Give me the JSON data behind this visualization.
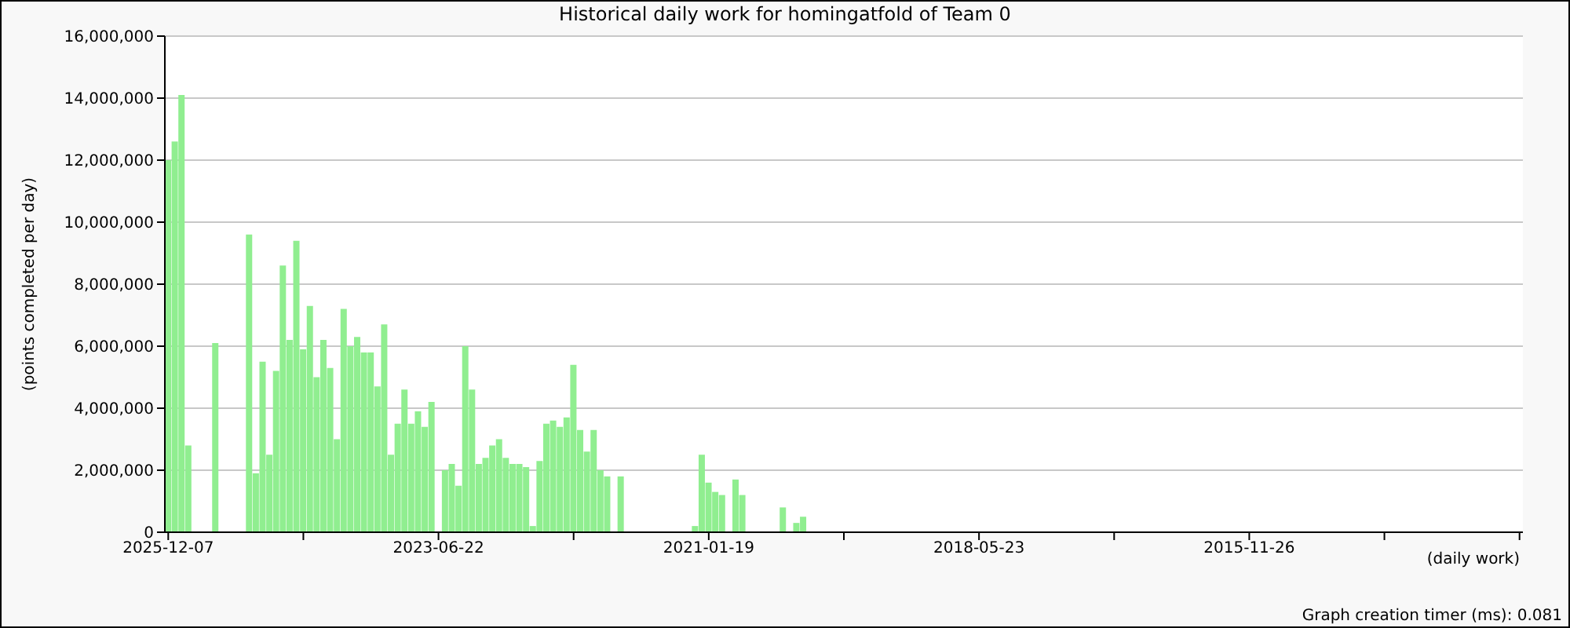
{
  "chart_data": {
    "type": "bar",
    "title": "Historical daily work for homingatfold of Team 0",
    "xlabel": "(daily work)",
    "ylabel": "(points completed per day)",
    "annotations": [
      "Graph creation timer (ms): 0.081"
    ],
    "categories": [
      "2025-12-07",
      null,
      null,
      null,
      null,
      null,
      null,
      null,
      null,
      null,
      null,
      null,
      null,
      null,
      null,
      null,
      null,
      null,
      null,
      null,
      null,
      null,
      null,
      null,
      null,
      null,
      null,
      null,
      null,
      null,
      null,
      null,
      null,
      null,
      null,
      null,
      null,
      null,
      null,
      null,
      "2023-06-22",
      null,
      null,
      null,
      null,
      null,
      null,
      null,
      null,
      null,
      null,
      null,
      null,
      null,
      null,
      null,
      null,
      null,
      null,
      null,
      null,
      null,
      null,
      null,
      null,
      null,
      null,
      null,
      null,
      null,
      null,
      null,
      null,
      null,
      null,
      null,
      null,
      null,
      null,
      null,
      "2021-01-19",
      null,
      null,
      null,
      null,
      null,
      null,
      null,
      null,
      null,
      null,
      null,
      null,
      null,
      null,
      null,
      null,
      null,
      null,
      null,
      null,
      null,
      null,
      null,
      null,
      null,
      null,
      null,
      null,
      null,
      null,
      null,
      null,
      null,
      null,
      null,
      null,
      null,
      null,
      null,
      "2018-05-23",
      null,
      null,
      null,
      null,
      null,
      null,
      null,
      null,
      null,
      null,
      null,
      null,
      null,
      null,
      null,
      null,
      null,
      null,
      null,
      null,
      null,
      null,
      null,
      null,
      null,
      null,
      null,
      null,
      null,
      null,
      null,
      null,
      null,
      null,
      null,
      null,
      null,
      null,
      null,
      "2015-11-26",
      null,
      null,
      null,
      null,
      null,
      null,
      null,
      null,
      null,
      null,
      null,
      null,
      null,
      null,
      null,
      null,
      null,
      null,
      null,
      null,
      null,
      null,
      null,
      null,
      null,
      null,
      null,
      null,
      null,
      null,
      null,
      null,
      null,
      null,
      null,
      null,
      null,
      null,
      null,
      null
    ],
    "values": [
      12000000,
      12600000,
      14100000,
      2800000,
      null,
      null,
      null,
      6100000,
      null,
      null,
      null,
      null,
      9600000,
      1900000,
      5500000,
      2500000,
      5200000,
      8600000,
      6200000,
      9400000,
      5900000,
      7300000,
      5000000,
      6200000,
      5300000,
      3000000,
      7200000,
      6000000,
      6300000,
      5800000,
      5800000,
      4700000,
      6700000,
      2500000,
      3500000,
      4600000,
      3500000,
      3900000,
      3400000,
      4200000,
      null,
      2000000,
      2200000,
      1500000,
      6000000,
      4600000,
      2200000,
      2400000,
      2800000,
      3000000,
      2400000,
      2200000,
      2200000,
      2100000,
      200000,
      2300000,
      3500000,
      3600000,
      3400000,
      3700000,
      5400000,
      3300000,
      2600000,
      3300000,
      2000000,
      1800000,
      null,
      1800000,
      null,
      null,
      null,
      null,
      null,
      null,
      null,
      null,
      null,
      null,
      200000,
      2500000,
      1600000,
      1300000,
      1200000,
      null,
      1700000,
      1200000,
      null,
      null,
      null,
      null,
      null,
      800000,
      null,
      300000,
      500000,
      null,
      null,
      null,
      null,
      null,
      null,
      null,
      null,
      null,
      null,
      null,
      null,
      null,
      null,
      null,
      null,
      null,
      null,
      null,
      null,
      null,
      null,
      null,
      null,
      null,
      null,
      null,
      null,
      null,
      null,
      null,
      null,
      null,
      null,
      null,
      null,
      null,
      null,
      null,
      null,
      null,
      null,
      null,
      null,
      null,
      null,
      null,
      null,
      null,
      null,
      null,
      null,
      null,
      null,
      null,
      null,
      null,
      null,
      null,
      null,
      null,
      null,
      null,
      null,
      null,
      null,
      null,
      null,
      null,
      null,
      null,
      null,
      null,
      null,
      null,
      null,
      null,
      null,
      null,
      null,
      null,
      null,
      null,
      null,
      null,
      null,
      null,
      null,
      null,
      null,
      null,
      null,
      null,
      null,
      null,
      null,
      null,
      null,
      null,
      null,
      null,
      null,
      null,
      null,
      null,
      null
    ],
    "color": "#90ee90",
    "ylim": [
      0,
      16000000
    ],
    "yticks": [
      0,
      {
        "value": 2000000,
        "label": "2,000,000"
      },
      {
        "value": 4000000,
        "label": "4,000,000"
      },
      {
        "value": 6000000,
        "label": "6,000,000"
      },
      {
        "value": 8000000,
        "label": "8,000,000"
      },
      {
        "value": 10000000,
        "label": "10,000,000"
      },
      {
        "value": 12000000,
        "label": "12,000,000"
      },
      {
        "value": 14000000,
        "label": "14,000,000"
      },
      {
        "value": 16000000,
        "label": "16,000,000"
      }
    ],
    "grid": "y"
  }
}
